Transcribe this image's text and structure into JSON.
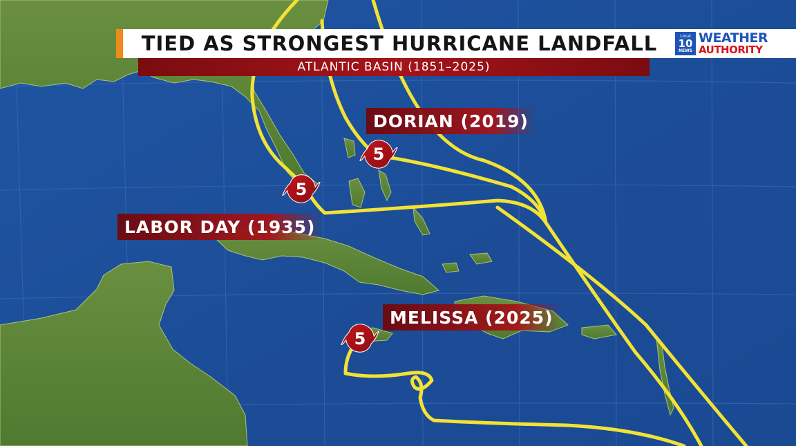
{
  "header": {
    "title": "TIED AS STRONGEST HURRICANE LANDFALL",
    "subtitle": "ATLANTIC BASIN (1851–2025)"
  },
  "logo": {
    "local": "Local",
    "number": "10",
    "news": "NEWS",
    "line1": "WEATHER",
    "line2": "AUTHORITY"
  },
  "storms": [
    {
      "name": "DORIAN (2019)",
      "category": "5"
    },
    {
      "name": "LABOR DAY (1935)",
      "category": "5"
    },
    {
      "name": "MELISSA (2025)",
      "category": "5"
    }
  ],
  "colors": {
    "ocean": "#1d4f9a",
    "land": "#5f8a3a",
    "track": "#f2e235",
    "label_red": "#a5141a",
    "accent_orange": "#f08a1c",
    "brand_blue": "#1e54b5",
    "brand_red": "#d4161c"
  },
  "icons": {
    "storm_marker": "hurricane-icon"
  }
}
